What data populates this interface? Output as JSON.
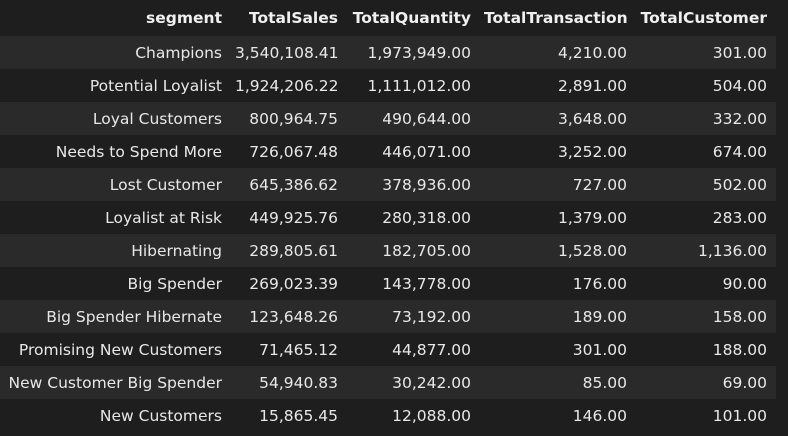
{
  "table": {
    "columns": [
      "segment",
      "TotalSales",
      "TotalQuantity",
      "TotalTransaction",
      "TotalCustomer"
    ],
    "rows": [
      [
        "Champions",
        "3,540,108.41",
        "1,973,949.00",
        "4,210.00",
        "301.00"
      ],
      [
        "Potential Loyalist",
        "1,924,206.22",
        "1,111,012.00",
        "2,891.00",
        "504.00"
      ],
      [
        "Loyal Customers",
        "800,964.75",
        "490,644.00",
        "3,648.00",
        "332.00"
      ],
      [
        "Needs to Spend More",
        "726,067.48",
        "446,071.00",
        "3,252.00",
        "674.00"
      ],
      [
        "Lost Customer",
        "645,386.62",
        "378,936.00",
        "727.00",
        "502.00"
      ],
      [
        "Loyalist at Risk",
        "449,925.76",
        "280,318.00",
        "1,379.00",
        "283.00"
      ],
      [
        "Hibernating",
        "289,805.61",
        "182,705.00",
        "1,528.00",
        "1,136.00"
      ],
      [
        "Big Spender",
        "269,023.39",
        "143,778.00",
        "176.00",
        "90.00"
      ],
      [
        "Big Spender Hibernate",
        "123,648.26",
        "73,192.00",
        "189.00",
        "158.00"
      ],
      [
        "Promising New Customers",
        "71,465.12",
        "44,877.00",
        "301.00",
        "188.00"
      ],
      [
        "New Customer Big Spender",
        "54,940.83",
        "30,242.00",
        "85.00",
        "69.00"
      ],
      [
        "New Customers",
        "15,865.45",
        "12,088.00",
        "146.00",
        "101.00"
      ]
    ]
  }
}
